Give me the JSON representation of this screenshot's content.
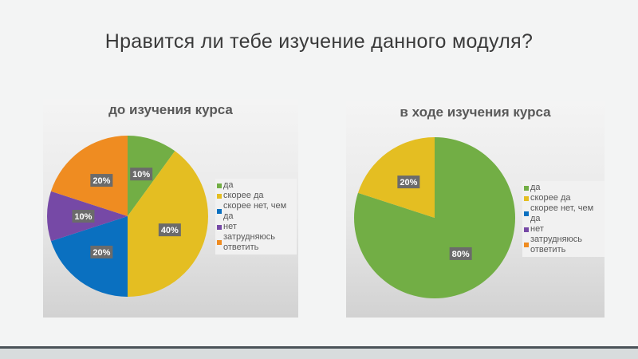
{
  "slide_title": "Нравится ли тебе изучение данного модуля?",
  "legend": [
    "да",
    "скорее да",
    "скорее нет, чем да",
    "нет",
    "затрудняюсь ответить"
  ],
  "colors": [
    "#72ae45",
    "#e4be22",
    "#0a70c0",
    "#7649a6",
    "#ef8c21"
  ],
  "chart_data": [
    {
      "type": "pie",
      "title": "до изучения курса",
      "categories": [
        "да",
        "скорее да",
        "скорее нет, чем да",
        "нет",
        "затрудняюсь ответить"
      ],
      "values": [
        10,
        40,
        20,
        10,
        20
      ],
      "labels": [
        "10%",
        "40%",
        "20%",
        "10%",
        "20%"
      ],
      "legend_position": "right"
    },
    {
      "type": "pie",
      "title": "в ходе изучения курса",
      "categories": [
        "да",
        "скорее да",
        "скорее нет, чем да",
        "нет",
        "затрудняюсь ответить"
      ],
      "values": [
        80,
        20,
        0,
        0,
        0
      ],
      "labels": [
        "80%",
        "20%",
        "",
        "",
        ""
      ],
      "legend_position": "right"
    }
  ]
}
